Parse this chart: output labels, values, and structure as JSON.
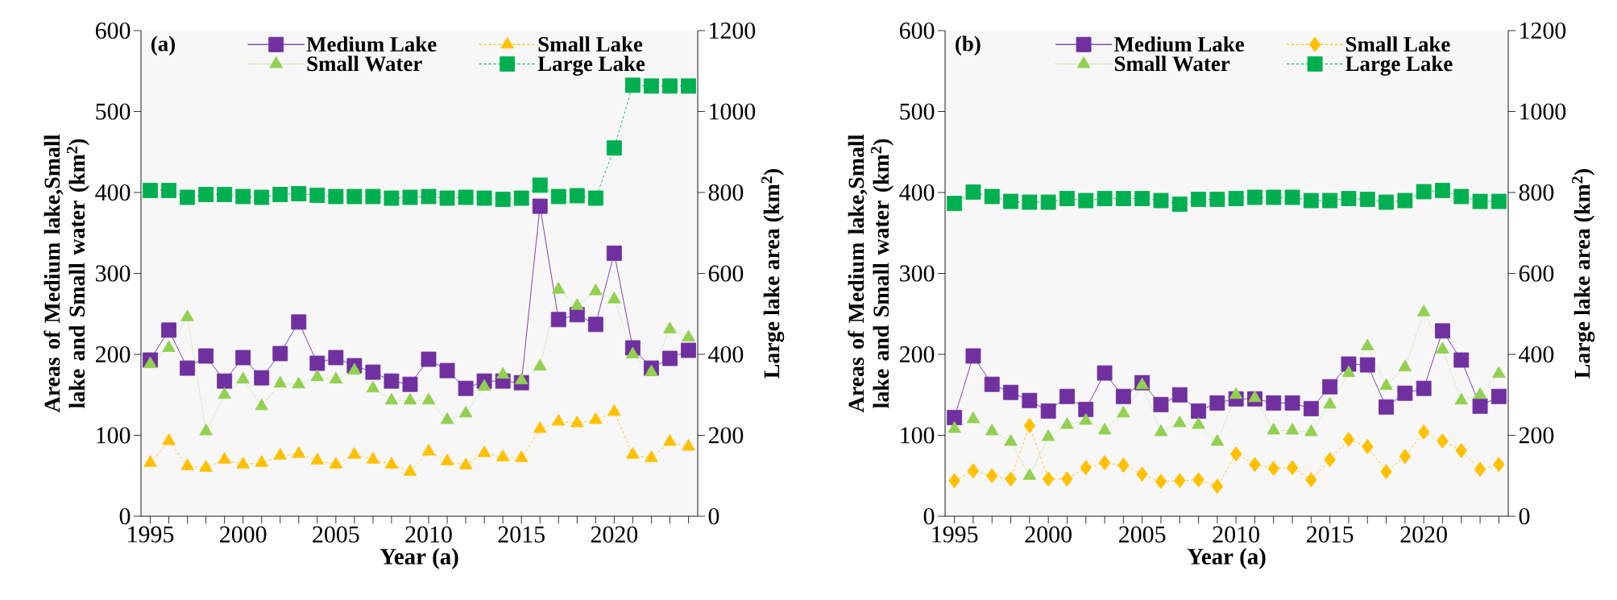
{
  "chart_data": [
    {
      "type": "line",
      "title": "(a)",
      "xlabel": "Year (a)",
      "ylabel": "Areas of  Medium lake,Small lake and Small water (km$^{2}$)",
      "y2label": "Large lake area (km$^{2}$)",
      "legend": "top",
      "x": [
        1995,
        1996,
        1997,
        1998,
        1999,
        2000,
        2001,
        2002,
        2003,
        2004,
        2005,
        2006,
        2007,
        2008,
        2009,
        2010,
        2011,
        2012,
        2013,
        2014,
        2015,
        2016,
        2017,
        2018,
        2019,
        2020,
        2021,
        2022,
        2023,
        2024
      ],
      "series": [
        {
          "name": "Medium Lake",
          "color": "#7030a0",
          "marker": "square",
          "line_style": "solid",
          "values": [
            193,
            230,
            183,
            198,
            167,
            196,
            171,
            201,
            240,
            189,
            196,
            186,
            178,
            167,
            163,
            194,
            180,
            158,
            167,
            167,
            165,
            383,
            243,
            249,
            237,
            325,
            208,
            183,
            195,
            205
          ]
        },
        {
          "name": "Small Lake",
          "color": "#ffc000",
          "marker": "triangle",
          "line_style": "dashed",
          "values": [
            66,
            93,
            62,
            60,
            70,
            64,
            66,
            75,
            77,
            69,
            64,
            76,
            70,
            64,
            55,
            80,
            68,
            63,
            78,
            73,
            72,
            108,
            117,
            115,
            119,
            129,
            76,
            72,
            92,
            86
          ]
        },
        {
          "name": "Small Water",
          "color": "#92d050",
          "marker": "triangle",
          "line_style": "dotted",
          "values": [
            188,
            208,
            246,
            105,
            150,
            169,
            136,
            164,
            163,
            172,
            169,
            180,
            158,
            143,
            143,
            143,
            119,
            127,
            160,
            175,
            168,
            185,
            280,
            260,
            278,
            268,
            200,
            178,
            231,
            221
          ]
        },
        {
          "name": "Large Lake",
          "color": "#00b050",
          "marker": "square",
          "line_style": "dashed",
          "axis": "y2",
          "values": [
            805,
            805,
            788,
            795,
            795,
            790,
            788,
            795,
            797,
            793,
            790,
            790,
            790,
            786,
            788,
            790,
            786,
            788,
            786,
            783,
            786,
            818,
            790,
            792,
            786,
            910,
            1065,
            1063,
            1063,
            1063
          ]
        }
      ],
      "xlim": [
        1994.5,
        2024.5
      ],
      "ylim": [
        0,
        600
      ],
      "y2lim": [
        0,
        1200
      ],
      "xticks": [
        1995,
        {
          "value": 1996,
          "label": null
        },
        {
          "value": 1997,
          "label": null
        },
        {
          "value": 1998,
          "label": null
        },
        {
          "value": 1999,
          "label": null
        },
        2000,
        {
          "value": 2001,
          "label": null
        },
        {
          "value": 2002,
          "label": null
        },
        {
          "value": 2003,
          "label": null
        },
        {
          "value": 2004,
          "label": null
        },
        2005,
        {
          "value": 2006,
          "label": null
        },
        {
          "value": 2007,
          "label": null
        },
        {
          "value": 2008,
          "label": null
        },
        {
          "value": 2009,
          "label": null
        },
        2010,
        {
          "value": 2011,
          "label": null
        },
        {
          "value": 2012,
          "label": null
        },
        {
          "value": 2013,
          "label": null
        },
        {
          "value": 2014,
          "label": null
        },
        2015,
        {
          "value": 2016,
          "label": null
        },
        {
          "value": 2017,
          "label": null
        },
        {
          "value": 2018,
          "label": null
        },
        {
          "value": 2019,
          "label": null
        },
        2020,
        {
          "value": 2021,
          "label": null
        },
        {
          "value": 2022,
          "label": null
        },
        {
          "value": 2023,
          "label": null
        },
        {
          "value": 2024,
          "label": null
        }
      ],
      "yticks": [
        0,
        100,
        200,
        300,
        400,
        500,
        600
      ],
      "y2ticks": [
        0,
        200,
        400,
        600,
        800,
        1000,
        1200
      ]
    },
    {
      "type": "line",
      "title": "(b)",
      "xlabel": "Year (a)",
      "ylabel": "Areas of  Medium lake,Small lake and Small water (km$^{2}$)",
      "y2label": "Large lake area (km$^{2}$)",
      "legend": "top",
      "x": [
        1995,
        1996,
        1997,
        1998,
        1999,
        2000,
        2001,
        2002,
        2003,
        2004,
        2005,
        2006,
        2007,
        2008,
        2009,
        2010,
        2011,
        2012,
        2013,
        2014,
        2015,
        2016,
        2017,
        2018,
        2019,
        2020,
        2021,
        2022,
        2023,
        2024
      ],
      "series": [
        {
          "name": "Medium Lake",
          "color": "#7030a0",
          "marker": "square",
          "line_style": "solid",
          "values": [
            122,
            198,
            163,
            153,
            143,
            130,
            148,
            132,
            177,
            148,
            165,
            138,
            150,
            130,
            140,
            145,
            145,
            140,
            140,
            133,
            160,
            188,
            187,
            135,
            152,
            158,
            229,
            193,
            136,
            148
          ]
        },
        {
          "name": "Small Lake",
          "color": "#ffc000",
          "marker": "diamond",
          "line_style": "dashed",
          "values": [
            44,
            56,
            50,
            46,
            112,
            46,
            46,
            60,
            66,
            63,
            52,
            43,
            44,
            45,
            37,
            77,
            64,
            59,
            60,
            45,
            70,
            95,
            86,
            55,
            74,
            104,
            93,
            81,
            58,
            64
          ]
        },
        {
          "name": "Small Water",
          "color": "#92d050",
          "marker": "triangle",
          "line_style": "dotted",
          "values": [
            108,
            120,
            105,
            92,
            50,
            98,
            113,
            118,
            106,
            127,
            162,
            104,
            115,
            113,
            92,
            150,
            146,
            106,
            106,
            104,
            138,
            177,
            210,
            161,
            184,
            252,
            206,
            143,
            150,
            176
          ]
        },
        {
          "name": "Large Lake",
          "color": "#00b050",
          "marker": "square",
          "line_style": "dashed",
          "axis": "y2",
          "values": [
            773,
            801,
            790,
            778,
            776,
            776,
            785,
            780,
            785,
            785,
            785,
            780,
            771,
            783,
            783,
            785,
            788,
            788,
            788,
            780,
            780,
            785,
            783,
            776,
            780,
            802,
            805,
            790,
            778,
            778
          ]
        }
      ],
      "xlim": [
        1994.5,
        2024.5
      ],
      "ylim": [
        0,
        600
      ],
      "y2lim": [
        0,
        1200
      ],
      "xticks": [
        1995,
        {
          "value": 1996,
          "label": null
        },
        {
          "value": 1997,
          "label": null
        },
        {
          "value": 1998,
          "label": null
        },
        {
          "value": 1999,
          "label": null
        },
        2000,
        {
          "value": 2001,
          "label": null
        },
        {
          "value": 2002,
          "label": null
        },
        {
          "value": 2003,
          "label": null
        },
        {
          "value": 2004,
          "label": null
        },
        2005,
        {
          "value": 2006,
          "label": null
        },
        {
          "value": 2007,
          "label": null
        },
        {
          "value": 2008,
          "label": null
        },
        {
          "value": 2009,
          "label": null
        },
        2010,
        {
          "value": 2011,
          "label": null
        },
        {
          "value": 2012,
          "label": null
        },
        {
          "value": 2013,
          "label": null
        },
        {
          "value": 2014,
          "label": null
        },
        2015,
        {
          "value": 2016,
          "label": null
        },
        {
          "value": 2017,
          "label": null
        },
        {
          "value": 2018,
          "label": null
        },
        {
          "value": 2019,
          "label": null
        },
        2020,
        {
          "value": 2021,
          "label": null
        },
        {
          "value": 2022,
          "label": null
        },
        {
          "value": 2023,
          "label": null
        },
        {
          "value": 2024,
          "label": null
        }
      ],
      "yticks": [
        0,
        100,
        200,
        300,
        400,
        500,
        600
      ],
      "y2ticks": [
        0,
        200,
        400,
        600,
        800,
        1000,
        1200
      ]
    }
  ]
}
